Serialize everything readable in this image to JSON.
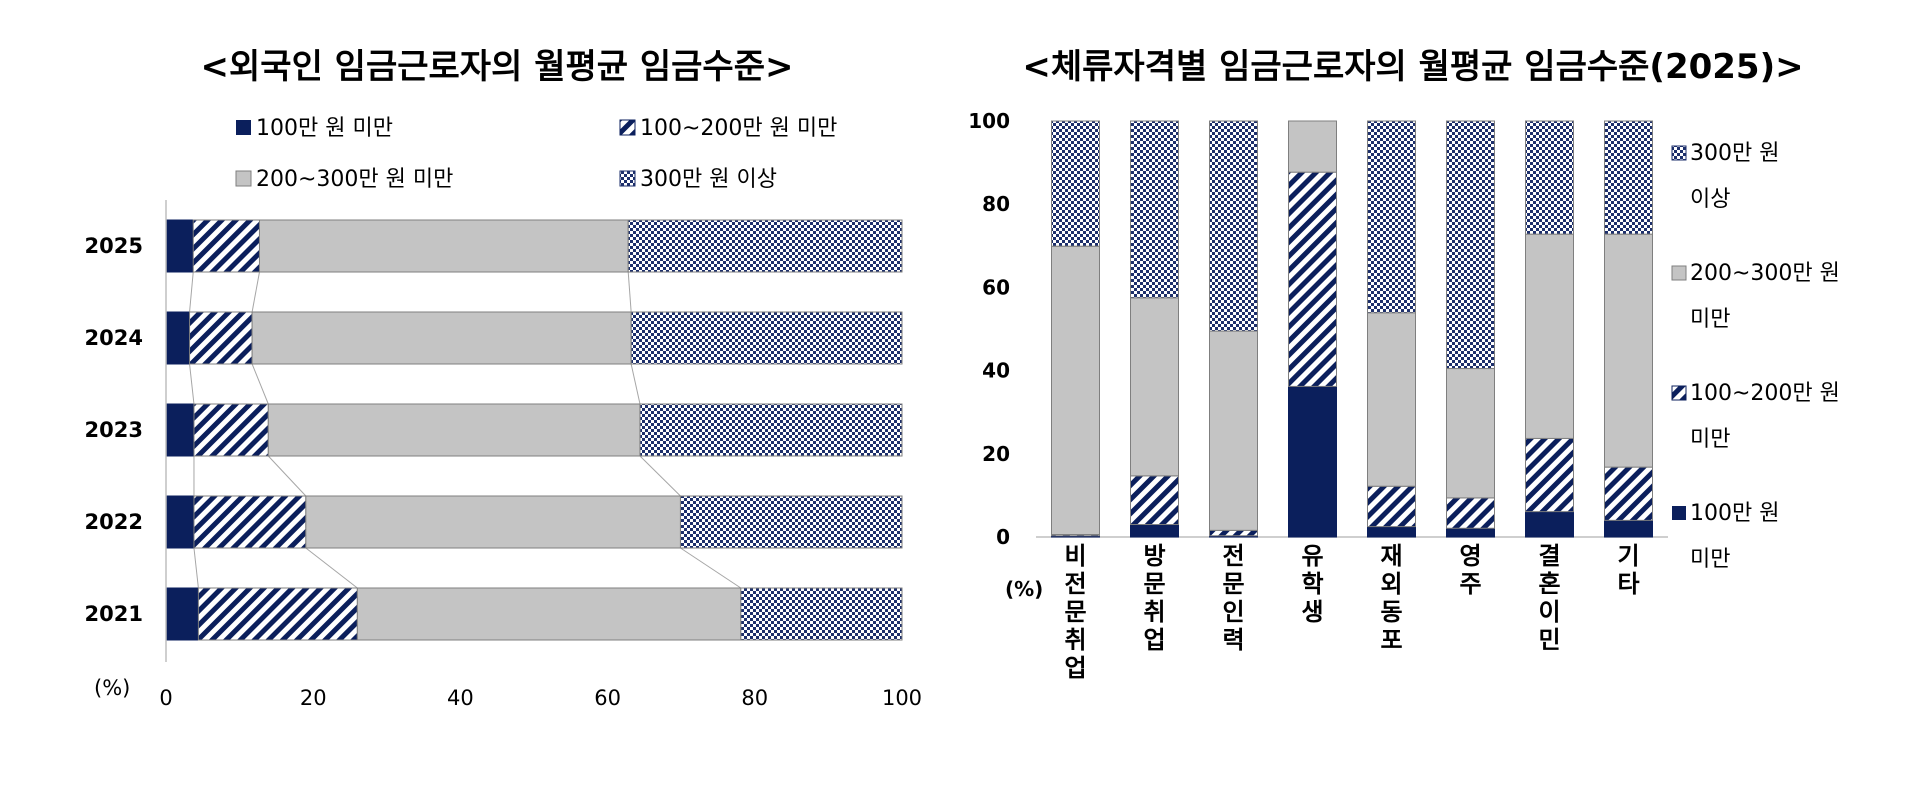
{
  "chart_data": [
    {
      "type": "bar",
      "orientation": "horizontal",
      "stacked": true,
      "title": "<외국인 임금근로자의 월평균 임금수준>",
      "categories": [
        "2025",
        "2024",
        "2023",
        "2022",
        "2021"
      ],
      "series": [
        {
          "name": "100만 원 미만",
          "values": [
            3.7,
            3.2,
            3.8,
            3.8,
            4.4
          ]
        },
        {
          "name": "100~200만 원 미만",
          "values": [
            9.0,
            8.5,
            10.1,
            15.2,
            21.6
          ]
        },
        {
          "name": "200~300만 원 미만",
          "values": [
            50.1,
            51.5,
            50.5,
            50.9,
            52.1
          ]
        },
        {
          "name": "300만 원 이상",
          "values": [
            37.2,
            36.8,
            35.6,
            30.1,
            21.9
          ]
        }
      ],
      "xlabel": "(%)",
      "xlim": [
        0,
        100
      ],
      "xticks": [
        "0",
        "20",
        "40",
        "60",
        "80",
        "100"
      ],
      "legend_position": "top",
      "series_lines": true
    },
    {
      "type": "bar",
      "orientation": "vertical",
      "stacked": true,
      "title": "<체류자격별 임금근로자의 월평균 임금수준(2025)>",
      "categories": [
        "비전문취업",
        "방문취업",
        "전문인력",
        "유학생",
        "재외동포",
        "영주",
        "결혼이민",
        "기타"
      ],
      "series": [
        {
          "name": "100만 원 미만",
          "values": [
            0.3,
            3.0,
            0.3,
            36.2,
            2.5,
            2.1,
            6.1,
            4.0
          ]
        },
        {
          "name": "100~200만 원 미만",
          "values": [
            0.3,
            11.7,
            1.3,
            51.5,
            9.7,
            7.3,
            17.6,
            12.8
          ]
        },
        {
          "name": "200~300만 원 미만",
          "values": [
            69.3,
            42.8,
            47.9,
            12.3,
            41.7,
            31.1,
            49.1,
            56.0
          ]
        },
        {
          "name": "300만 원 이상",
          "values": [
            30.1,
            42.5,
            50.5,
            0.0,
            46.1,
            59.5,
            27.2,
            27.2
          ]
        }
      ],
      "ylabel": "(%)",
      "ylim": [
        0,
        100
      ],
      "yticks": [
        "0",
        "20",
        "40",
        "60",
        "80",
        "100"
      ],
      "legend_position": "right",
      "legend_labels": [
        [
          "300만 원",
          "이상"
        ],
        [
          "200~300만 원",
          "미만"
        ],
        [
          "100~200만 원",
          "미만"
        ],
        [
          "100만 원",
          "미만"
        ]
      ]
    }
  ],
  "colors": {
    "navy": "#0b1f5c",
    "gray": "#c4c4c4",
    "hatch_line": "#0b1f5c",
    "check_dark": "#1d2f6b",
    "check_light": "#ffffff",
    "bar_border": "#7f7f7f"
  },
  "legend_left": [
    "100만 원 미만",
    "100~200만 원 미만",
    "200~300만 원 미만",
    "300만 원 이상"
  ]
}
